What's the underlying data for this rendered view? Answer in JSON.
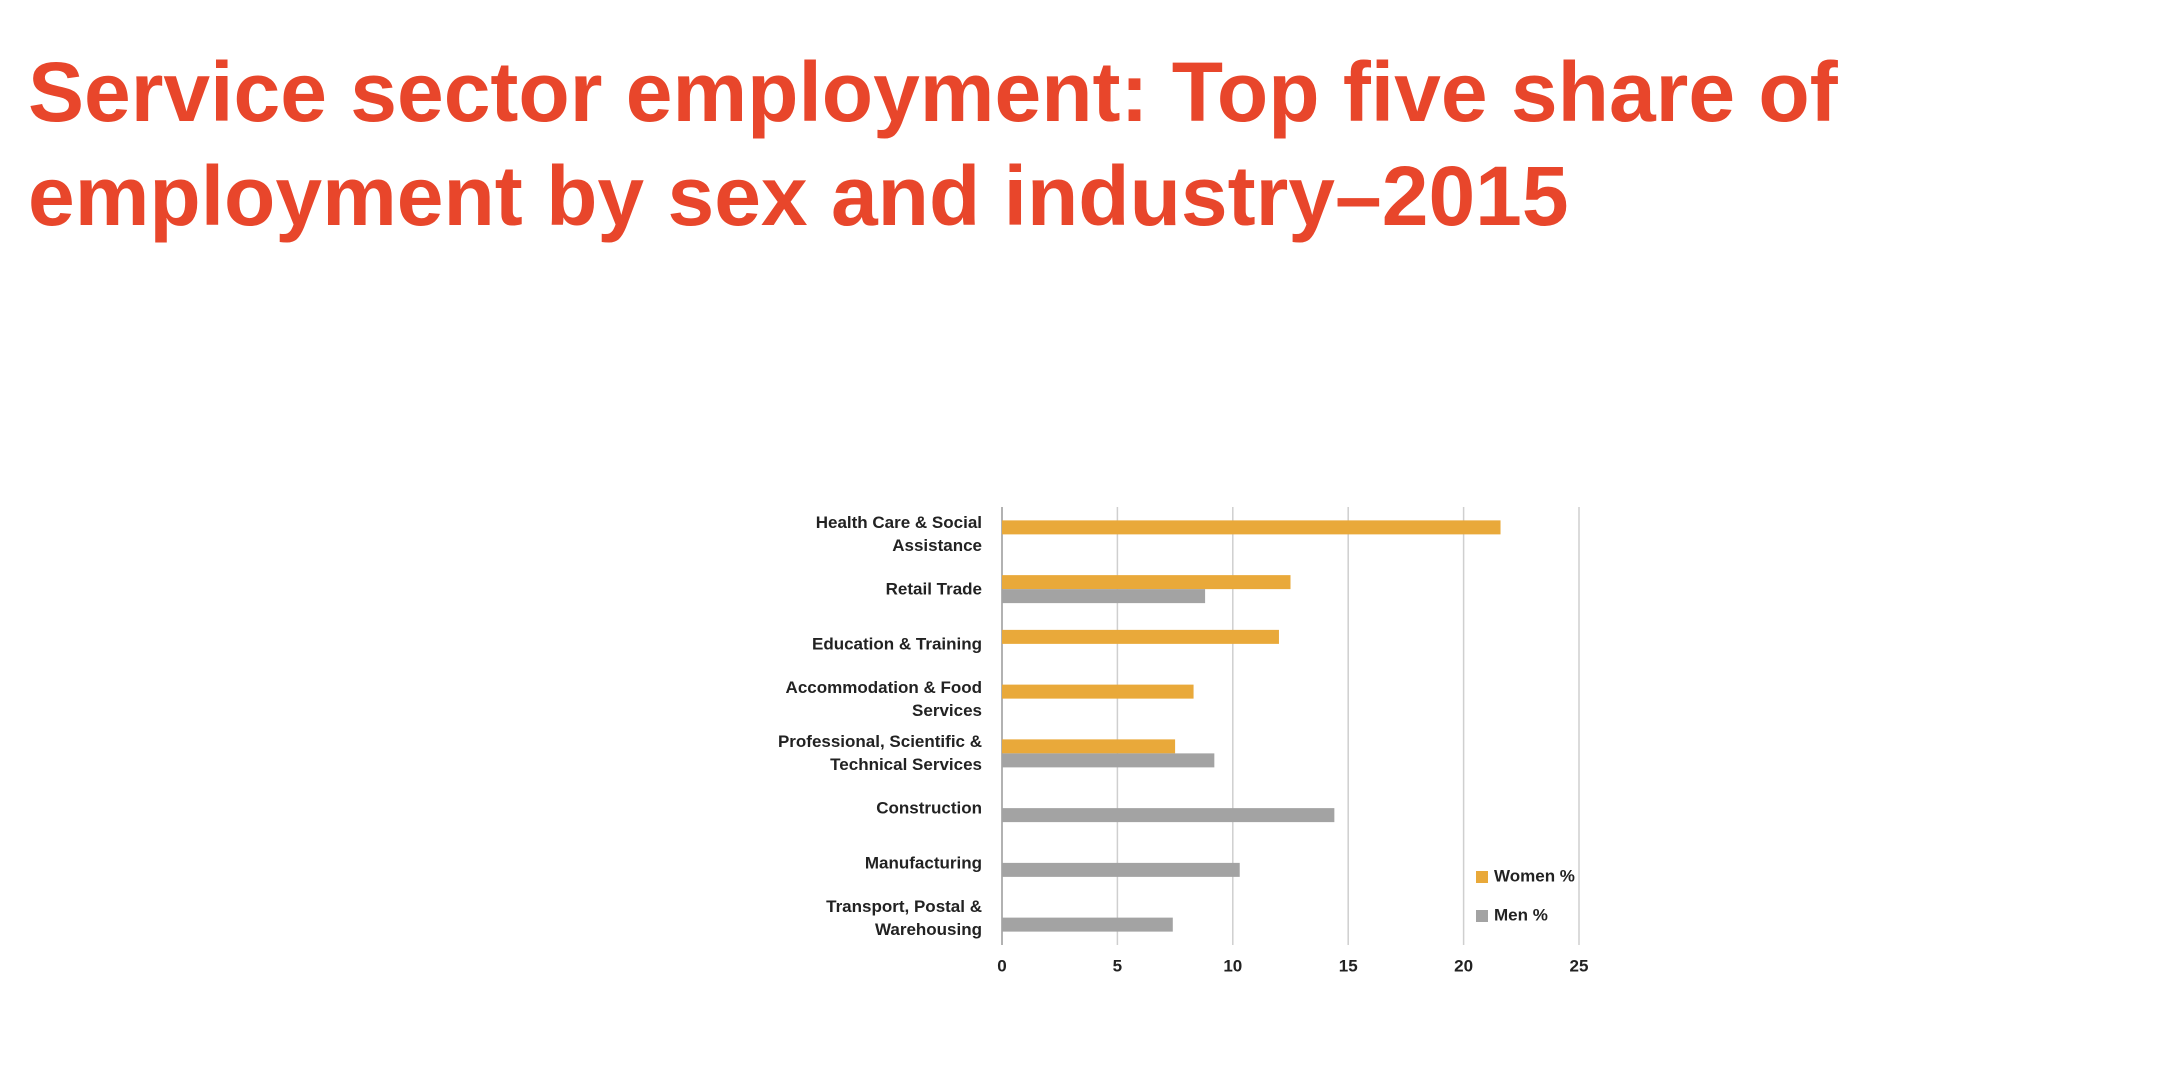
{
  "chart_data": {
    "type": "bar",
    "orientation": "horizontal",
    "title": "Service sector employment: Top five share of employment by sex and industry–2015",
    "categories": [
      "Health Care & Social Assistance",
      "Retail Trade",
      "Education & Training",
      "Accommodation & Food Services",
      "Professional, Scientific & Technical Services",
      "Construction",
      "Manufacturing",
      "Transport, Postal & Warehousing"
    ],
    "series": [
      {
        "name": "Women %",
        "color": "#e9a93a",
        "values": [
          21.6,
          12.5,
          12.0,
          8.3,
          7.5,
          null,
          null,
          null
        ]
      },
      {
        "name": "Men %",
        "color": "#a3a3a3",
        "values": [
          null,
          8.8,
          null,
          null,
          9.2,
          14.4,
          10.3,
          7.4
        ]
      }
    ],
    "xlim": [
      0,
      25
    ],
    "xticks": [
      0,
      5,
      10,
      15,
      20,
      25
    ],
    "grid": true,
    "legend": "bottom-right"
  }
}
